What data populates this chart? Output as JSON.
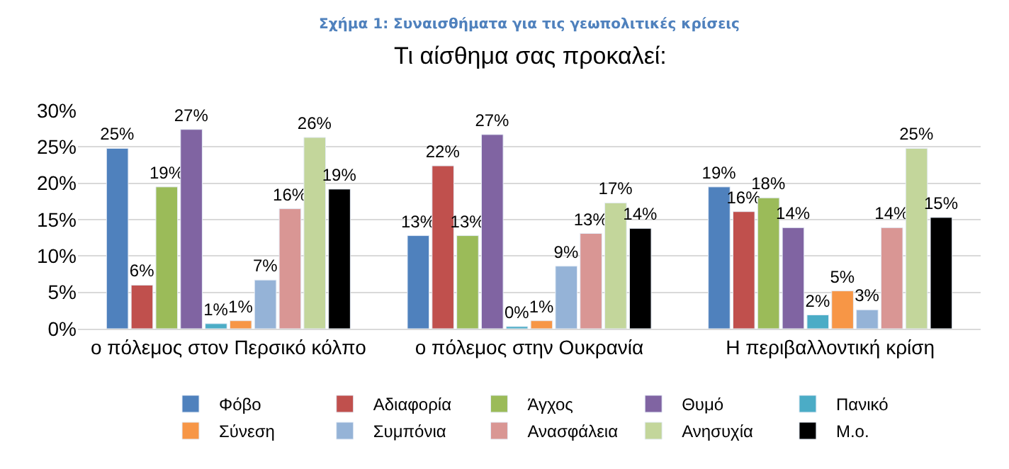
{
  "chart_data": {
    "type": "bar",
    "title": "Σχήμα 1: Συναισθήματα για τις γεωπολιτικές κρίσεις",
    "subtitle": "Τι αίσθημα σας προκαλεί:",
    "categories": [
      "ο πόλεμος στον Περσικό κόλπο",
      "ο πόλεμος στην Ουκρανία",
      "Η περιβαλλοντική κρίση"
    ],
    "series": [
      {
        "name": "Φόβο",
        "color": "#4f81bd",
        "values": [
          24.8,
          12.8,
          19.5
        ],
        "value_labels": [
          "25%",
          "13%",
          "19%"
        ]
      },
      {
        "name": "Αδιαφορία",
        "color": "#c0504d",
        "values": [
          6.0,
          22.4,
          16.1
        ],
        "value_labels": [
          "6%",
          "22%",
          "16%"
        ]
      },
      {
        "name": "Άγχος",
        "color": "#9bbb59",
        "values": [
          19.5,
          12.8,
          18.0
        ],
        "value_labels": [
          "19%",
          "13%",
          "18%"
        ]
      },
      {
        "name": "Θυμό",
        "color": "#8064a2",
        "values": [
          27.4,
          26.7,
          13.9
        ],
        "value_labels": [
          "27%",
          "27%",
          "14%"
        ]
      },
      {
        "name": "Πανικό",
        "color": "#4bacc6",
        "values": [
          0.7,
          0.3,
          1.9
        ],
        "value_labels": [
          "1%",
          "0%",
          "2%"
        ]
      },
      {
        "name": "Σύνεση",
        "color": "#f79646",
        "values": [
          1.1,
          1.1,
          5.2
        ],
        "value_labels": [
          "1%",
          "1%",
          "5%"
        ]
      },
      {
        "name": "Συμπόνια",
        "color": "#95b3d7",
        "values": [
          6.7,
          8.6,
          2.6
        ],
        "value_labels": [
          "7%",
          "9%",
          "3%"
        ]
      },
      {
        "name": "Ανασφάλεια",
        "color": "#d99694",
        "values": [
          16.5,
          13.1,
          13.9
        ],
        "value_labels": [
          "16%",
          "13%",
          "14%"
        ]
      },
      {
        "name": "Ανησυχία",
        "color": "#c3d69b",
        "values": [
          26.3,
          17.3,
          24.8
        ],
        "value_labels": [
          "26%",
          "17%",
          "25%"
        ]
      },
      {
        "name": "Μ.ο.",
        "color": "#000000",
        "values": [
          19.2,
          13.8,
          15.3
        ],
        "value_labels": [
          "19%",
          "14%",
          "15%"
        ]
      }
    ],
    "ylim": [
      0,
      30
    ],
    "yticks": [
      {
        "value": 0,
        "label": "0%"
      },
      {
        "value": 5,
        "label": "5%"
      },
      {
        "value": 10,
        "label": "10%"
      },
      {
        "value": 15,
        "label": "15%"
      },
      {
        "value": 20,
        "label": "20%"
      },
      {
        "value": 25,
        "label": "25%"
      },
      {
        "value": 30,
        "label": "30%"
      }
    ],
    "grid": "y",
    "legend": "bottom"
  }
}
